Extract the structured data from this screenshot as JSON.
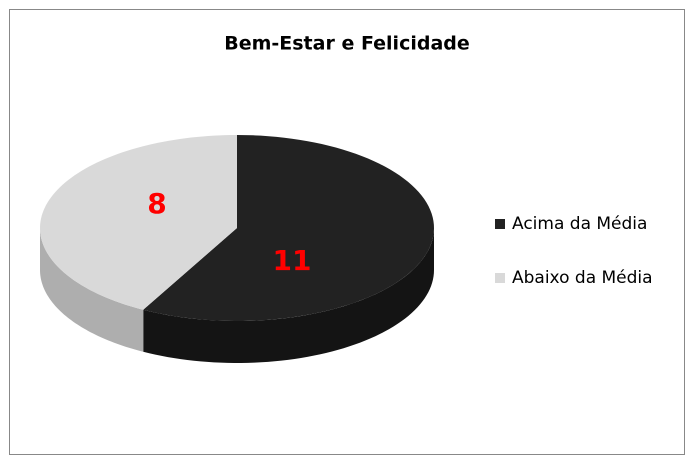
{
  "chart_data": {
    "type": "pie",
    "title": "Bem-Estar e Felicidade",
    "categories": [
      "Acima da Média",
      "Abaixo da Média"
    ],
    "values": [
      11,
      8
    ],
    "colors": [
      "#222222",
      "#d9d9d9"
    ],
    "label_color": "#ff0000",
    "legend": "right"
  }
}
